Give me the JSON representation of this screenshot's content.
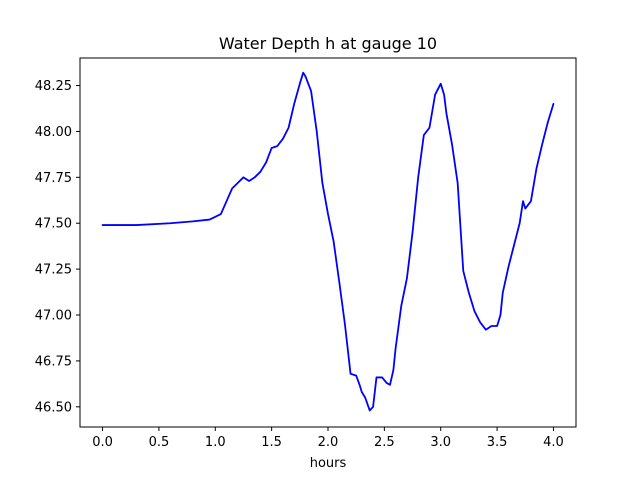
{
  "chart_data": {
    "type": "line",
    "title": "Water Depth h at gauge 10",
    "xlabel": "hours",
    "ylabel": "",
    "xlim": [
      -0.2,
      4.2
    ],
    "ylim": [
      46.39,
      48.4
    ],
    "grid": false,
    "x_ticks": [
      0.0,
      0.5,
      1.0,
      1.5,
      2.0,
      2.5,
      3.0,
      3.5,
      4.0
    ],
    "x_tick_labels": [
      "0.0",
      "0.5",
      "1.0",
      "1.5",
      "2.0",
      "2.5",
      "3.0",
      "3.5",
      "4.0"
    ],
    "y_ticks": [
      46.5,
      46.75,
      47.0,
      47.25,
      47.5,
      47.75,
      48.0,
      48.25
    ],
    "y_tick_labels": [
      "46.50",
      "46.75",
      "47.00",
      "47.25",
      "47.50",
      "47.75",
      "48.00",
      "48.25"
    ],
    "series": [
      {
        "color": "#0000ff",
        "x": [
          0.0,
          0.3,
          0.6,
          0.8,
          0.95,
          1.05,
          1.1,
          1.15,
          1.2,
          1.25,
          1.3,
          1.35,
          1.4,
          1.45,
          1.5,
          1.55,
          1.6,
          1.65,
          1.7,
          1.75,
          1.78,
          1.8,
          1.85,
          1.9,
          1.95,
          2.0,
          2.05,
          2.1,
          2.15,
          2.2,
          2.25,
          2.28,
          2.3,
          2.33,
          2.37,
          2.4,
          2.43,
          2.45,
          2.48,
          2.52,
          2.55,
          2.58,
          2.6,
          2.65,
          2.7,
          2.75,
          2.8,
          2.85,
          2.9,
          2.95,
          3.0,
          3.03,
          3.05,
          3.1,
          3.15,
          3.2,
          3.25,
          3.3,
          3.35,
          3.4,
          3.45,
          3.5,
          3.53,
          3.55,
          3.6,
          3.65,
          3.7,
          3.73,
          3.75,
          3.8,
          3.85,
          3.9,
          3.95,
          4.0
        ],
        "y": [
          47.49,
          47.49,
          47.5,
          47.51,
          47.52,
          47.55,
          47.62,
          47.69,
          47.72,
          47.75,
          47.73,
          47.75,
          47.78,
          47.83,
          47.91,
          47.92,
          47.96,
          48.02,
          48.15,
          48.26,
          48.32,
          48.3,
          48.22,
          48.0,
          47.72,
          47.55,
          47.4,
          47.18,
          46.95,
          46.68,
          46.67,
          46.62,
          46.58,
          46.55,
          46.48,
          46.5,
          46.66,
          46.66,
          46.66,
          46.63,
          46.62,
          46.7,
          46.82,
          47.05,
          47.2,
          47.45,
          47.75,
          47.98,
          48.02,
          48.2,
          48.26,
          48.2,
          48.1,
          47.93,
          47.72,
          47.24,
          47.12,
          47.02,
          46.96,
          46.92,
          46.94,
          46.94,
          47.0,
          47.12,
          47.26,
          47.38,
          47.5,
          47.62,
          47.58,
          47.62,
          47.8,
          47.93,
          48.05,
          48.15
        ]
      }
    ]
  }
}
